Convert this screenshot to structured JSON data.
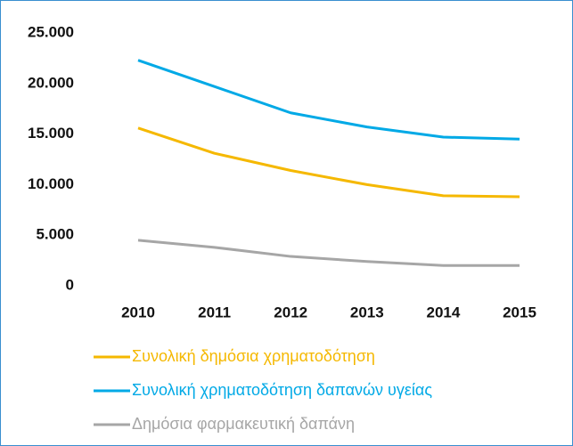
{
  "chart_data": {
    "type": "line",
    "categories": [
      "2010",
      "2011",
      "2012",
      "2013",
      "2014",
      "2015"
    ],
    "series": [
      {
        "name": "Συνολική δημόσια χρηματοδότηση",
        "color": "#f5b800",
        "values": [
          15600,
          13100,
          11400,
          10000,
          8900,
          8800
        ]
      },
      {
        "name": "Συνολική χρηματοδότηση δαπανών υγείας",
        "color": "#00a9e6",
        "values": [
          22300,
          19700,
          17100,
          15700,
          14700,
          14500
        ]
      },
      {
        "name": "Δημόσια φαρμακευτική δαπάνη",
        "color": "#a6a6a6",
        "values": [
          4500,
          3800,
          2900,
          2400,
          2000,
          2000
        ]
      }
    ],
    "ylim": [
      0,
      25000
    ],
    "yticks": [
      0,
      {
        "value": 5000,
        "label": "5.000"
      },
      {
        "value": 10000,
        "label": "10.000"
      },
      {
        "value": 15000,
        "label": "15.000"
      },
      {
        "value": 20000,
        "label": "20.000"
      },
      {
        "value": 25000,
        "label": "25.000"
      }
    ],
    "grid": false,
    "legend": "bottom"
  }
}
